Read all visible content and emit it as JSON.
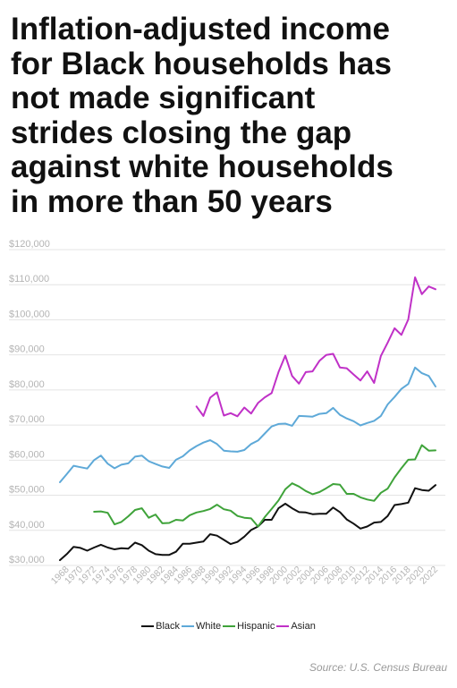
{
  "title": "Inflation-adjusted income\nfor Black households has\nnot made significant\nstrides closing the gap\nagainst white households\nin more than 50 years",
  "source": "Source: U.S. Census Bureau",
  "chart_data": {
    "type": "line",
    "ylim": [
      30000,
      120000
    ],
    "xlim": [
      1967,
      2022
    ],
    "grid": true,
    "legend_position": "bottom-center",
    "y_ticks": [
      30000,
      40000,
      50000,
      60000,
      70000,
      80000,
      90000,
      100000,
      110000,
      120000
    ],
    "y_tick_labels": [
      "$30,000",
      "$40,000",
      "$50,000",
      "$60,000",
      "$70,000",
      "$80,000",
      "$90,000",
      "$100,000",
      "$110,000",
      "$120,000"
    ],
    "x_ticks": [
      1968,
      1970,
      1972,
      1974,
      1976,
      1978,
      1980,
      1982,
      1984,
      1986,
      1988,
      1990,
      1992,
      1994,
      1996,
      1998,
      2000,
      2002,
      2004,
      2006,
      2008,
      2010,
      2012,
      2014,
      2016,
      2018,
      2020,
      2022
    ],
    "series": [
      {
        "name": "Black",
        "color": "#111111",
        "x": [
          1967,
          1968,
          1969,
          1970,
          1971,
          1972,
          1973,
          1974,
          1975,
          1976,
          1977,
          1978,
          1979,
          1980,
          1981,
          1982,
          1983,
          1984,
          1985,
          1986,
          1987,
          1988,
          1989,
          1990,
          1991,
          1992,
          1993,
          1994,
          1995,
          1996,
          1997,
          1998,
          1999,
          2000,
          2001,
          2002,
          2003,
          2004,
          2005,
          2006,
          2007,
          2008,
          2009,
          2010,
          2011,
          2012,
          2013,
          2014,
          2015,
          2016,
          2017,
          2018,
          2019,
          2020,
          2021,
          2022
        ],
        "values": [
          31500,
          33200,
          35300,
          35000,
          34200,
          35100,
          35900,
          35100,
          34600,
          34900,
          34800,
          36500,
          35800,
          34200,
          33200,
          33000,
          33000,
          33900,
          36200,
          36200,
          36500,
          36800,
          38900,
          38500,
          37300,
          36100,
          36700,
          38200,
          40100,
          41100,
          43000,
          43000,
          46300,
          47600,
          46300,
          45200,
          45100,
          44600,
          44700,
          44700,
          46500,
          45200,
          43100,
          41900,
          40500,
          41100,
          42200,
          42400,
          44100,
          47200,
          47500,
          47900,
          52000,
          51500,
          51300,
          52900
        ]
      },
      {
        "name": "White",
        "color": "#5ea9d8",
        "x": [
          1967,
          1968,
          1969,
          1970,
          1971,
          1972,
          1973,
          1974,
          1975,
          1976,
          1977,
          1978,
          1979,
          1980,
          1981,
          1982,
          1983,
          1984,
          1985,
          1986,
          1987,
          1988,
          1989,
          1990,
          1991,
          1992,
          1993,
          1994,
          1995,
          1996,
          1997,
          1998,
          1999,
          2000,
          2001,
          2002,
          2003,
          2004,
          2005,
          2006,
          2007,
          2008,
          2009,
          2010,
          2011,
          2012,
          2013,
          2014,
          2015,
          2016,
          2017,
          2018,
          2019,
          2020,
          2021,
          2022
        ],
        "values": [
          53700,
          56000,
          58400,
          58000,
          57600,
          60000,
          61300,
          59000,
          57700,
          58700,
          59100,
          61000,
          61300,
          59700,
          58900,
          58200,
          57800,
          60100,
          61100,
          62800,
          64000,
          65000,
          65700,
          64600,
          62700,
          62500,
          62400,
          62900,
          64600,
          65600,
          67600,
          69600,
          70300,
          70400,
          69800,
          72600,
          72500,
          72400,
          73200,
          73400,
          74900,
          72900,
          71900,
          71100,
          69900,
          70600,
          71200,
          72600,
          75900,
          78000,
          80300,
          81700,
          86400,
          84800,
          84000,
          81000
        ]
      },
      {
        "name": "Hispanic",
        "color": "#3fa33a",
        "x": [
          1972,
          1973,
          1974,
          1975,
          1976,
          1977,
          1978,
          1979,
          1980,
          1981,
          1982,
          1983,
          1984,
          1985,
          1986,
          1987,
          1988,
          1989,
          1990,
          1991,
          1992,
          1993,
          1994,
          1995,
          1996,
          1997,
          1998,
          1999,
          2000,
          2001,
          2002,
          2003,
          2004,
          2005,
          2006,
          2007,
          2008,
          2009,
          2010,
          2011,
          2012,
          2013,
          2014,
          2015,
          2016,
          2017,
          2018,
          2019,
          2020,
          2021,
          2022
        ],
        "values": [
          45300,
          45400,
          45000,
          41700,
          42400,
          44000,
          45800,
          46300,
          43600,
          44500,
          42000,
          42100,
          43000,
          42800,
          44300,
          45100,
          45500,
          46100,
          47300,
          46000,
          45600,
          44100,
          43600,
          43400,
          41100,
          43800,
          46100,
          48500,
          51700,
          53400,
          52500,
          51200,
          50300,
          50900,
          52000,
          53200,
          53000,
          50400,
          50400,
          49400,
          48800,
          48400,
          50700,
          51900,
          55100,
          57700,
          60100,
          60200,
          64300,
          62700,
          62800
        ]
      },
      {
        "name": "Asian",
        "color": "#c031c7",
        "x": [
          1987,
          1988,
          1989,
          1990,
          1991,
          1992,
          1993,
          1994,
          1995,
          1996,
          1997,
          1998,
          1999,
          2000,
          2001,
          2002,
          2003,
          2004,
          2005,
          2006,
          2007,
          2008,
          2009,
          2010,
          2011,
          2012,
          2013,
          2014,
          2015,
          2016,
          2017,
          2018,
          2019,
          2020,
          2021,
          2022
        ],
        "values": [
          75300,
          72600,
          77800,
          79300,
          72700,
          73400,
          72500,
          75000,
          73300,
          76300,
          77900,
          79100,
          85100,
          89800,
          84000,
          81800,
          85100,
          85300,
          88300,
          90000,
          90300,
          86400,
          86200,
          84400,
          82700,
          85300,
          82000,
          89700,
          93500,
          97600,
          95700,
          100100,
          112100,
          107300,
          109500,
          108700
        ]
      }
    ]
  }
}
